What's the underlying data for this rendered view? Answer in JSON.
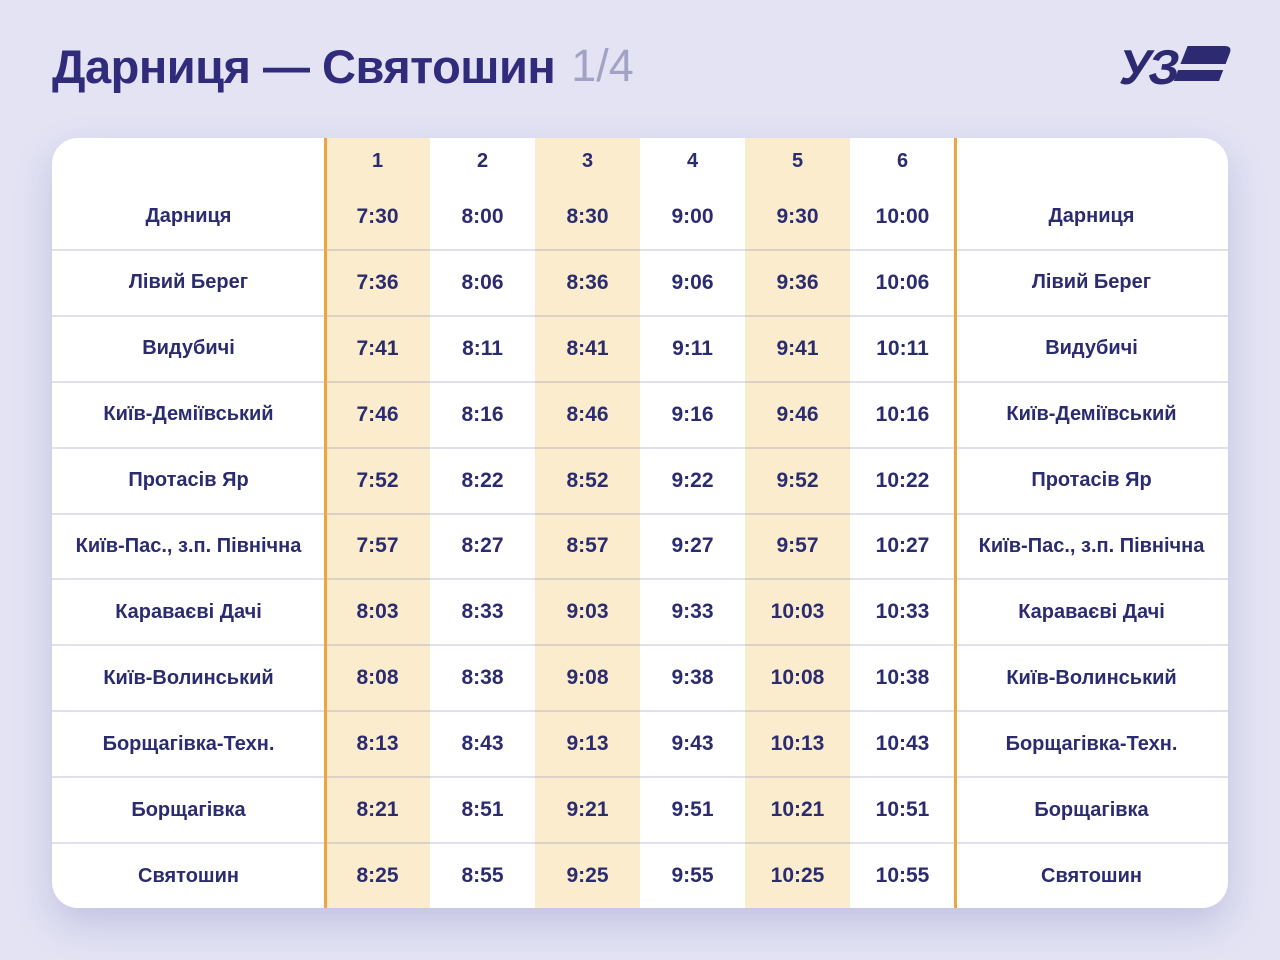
{
  "header": {
    "title": "Дарниця — Святошин",
    "page_indicator": "1/4",
    "logo": "uz-railways-logo"
  },
  "table": {
    "column_numbers": [
      "1",
      "2",
      "3",
      "4",
      "5",
      "6"
    ],
    "highlighted_columns": [
      "1",
      "3",
      "5"
    ],
    "rows": [
      {
        "station": "Дарниця",
        "times": [
          "7:30",
          "8:00",
          "8:30",
          "9:00",
          "9:30",
          "10:00"
        ]
      },
      {
        "station": "Лівий Берег",
        "times": [
          "7:36",
          "8:06",
          "8:36",
          "9:06",
          "9:36",
          "10:06"
        ]
      },
      {
        "station": "Видубичі",
        "times": [
          "7:41",
          "8:11",
          "8:41",
          "9:11",
          "9:41",
          "10:11"
        ]
      },
      {
        "station": "Київ-Деміївський",
        "times": [
          "7:46",
          "8:16",
          "8:46",
          "9:16",
          "9:46",
          "10:16"
        ]
      },
      {
        "station": "Протасів Яр",
        "times": [
          "7:52",
          "8:22",
          "8:52",
          "9:22",
          "9:52",
          "10:22"
        ]
      },
      {
        "station": "Київ-Пас., з.п. Північна",
        "times": [
          "7:57",
          "8:27",
          "8:57",
          "9:27",
          "9:57",
          "10:27"
        ]
      },
      {
        "station": "Караваєві Дачі",
        "times": [
          "8:03",
          "8:33",
          "9:03",
          "9:33",
          "10:03",
          "10:33"
        ]
      },
      {
        "station": "Київ-Волинський",
        "times": [
          "8:08",
          "8:38",
          "9:08",
          "9:38",
          "10:08",
          "10:38"
        ]
      },
      {
        "station": "Борщагівка-Техн.",
        "times": [
          "8:13",
          "8:43",
          "9:13",
          "9:43",
          "10:13",
          "10:43"
        ]
      },
      {
        "station": "Борщагівка",
        "times": [
          "8:21",
          "8:51",
          "9:21",
          "9:51",
          "10:21",
          "10:51"
        ]
      },
      {
        "station": "Святошин",
        "times": [
          "8:25",
          "8:55",
          "9:25",
          "9:55",
          "10:25",
          "10:55"
        ]
      }
    ]
  },
  "colors": {
    "background": "#e3e3f4",
    "card": "#ffffff",
    "navy": "#2b2c6f",
    "title_navy": "#312b7b",
    "cream": "#faeccd",
    "orange": "#efa53e",
    "page_indicator_gray": "#a2a2c4"
  }
}
